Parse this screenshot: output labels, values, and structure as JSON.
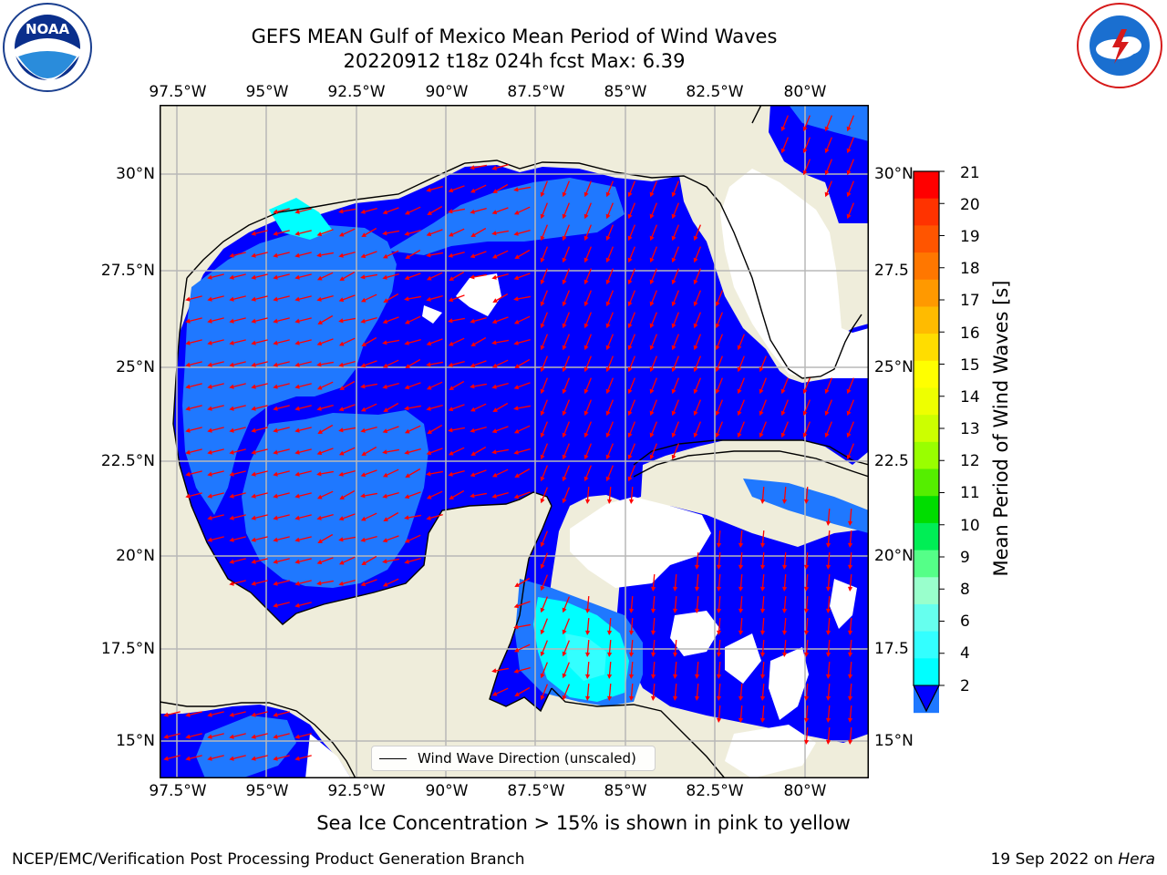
{
  "header": {
    "title_line1": "GEFS MEAN Gulf of Mexico Mean Period of Wind Waves",
    "title_line2": "20220912 t18z 024h fcst   Max: 6.39"
  },
  "logos": {
    "left": {
      "name": "NOAA",
      "ring_text": "NATIONAL OCEANIC AND ATMOSPHERIC ADMINISTRATION · U.S. DEPARTMENT OF COMMERCE ·"
    },
    "right": {
      "name": "NATIONAL WEATHER SERVICE",
      "ring_text": "NATIONAL WEATHER SERVICE"
    }
  },
  "map": {
    "lon_ticks": [
      "97.5°W",
      "95°W",
      "92.5°W",
      "90°W",
      "87.5°W",
      "85°W",
      "82.5°W",
      "80°W"
    ],
    "lat_ticks_left": [
      "30°N",
      "27.5°N",
      "25°N",
      "22.5°N",
      "20°N",
      "17.5°N",
      "15°N"
    ],
    "lat_ticks_right": [
      "30°N",
      "27.5",
      "25°N",
      "22.5",
      "20°N",
      "17.5",
      "15°N"
    ],
    "lon_range": [
      -98,
      -78.2
    ],
    "lat_range": [
      14,
      31.8
    ],
    "land_color": "#efeddb",
    "ocean_low_color": "#0000ff",
    "ocean_mid_color": "#1f78ff",
    "ocean_high_color": "#00ffff",
    "arrow_color": "#ff0000",
    "grid": true
  },
  "legend": {
    "label": "Wind Wave Direction (unscaled)"
  },
  "colorbar": {
    "label": "Mean Period of Wind Waves [s]",
    "ticks": [
      "21",
      "20",
      "19",
      "18",
      "17",
      "16",
      "15",
      "14",
      "13",
      "12",
      "11",
      "10",
      "9",
      "8",
      "6",
      "4",
      "2"
    ],
    "colors": [
      "#ff0000",
      "#ff3300",
      "#ff5500",
      "#ff7700",
      "#ff9900",
      "#ffbb00",
      "#ffdd00",
      "#ffff00",
      "#eeff00",
      "#ccff00",
      "#99ff00",
      "#55ee00",
      "#00dd00",
      "#00ee55",
      "#55ff88",
      "#99ffcc",
      "#66ffee",
      "#33ffff",
      "#00ffff",
      "#1f78ff"
    ],
    "extend_color": "#0000ff"
  },
  "subtitle": "Sea Ice Concentration > 15% is shown in pink to yellow",
  "footer": {
    "left": "NCEP/EMC/Verification Post Processing Product Generation Branch",
    "right_prefix": "19 Sep 2022 on ",
    "right_host": "Hera"
  }
}
